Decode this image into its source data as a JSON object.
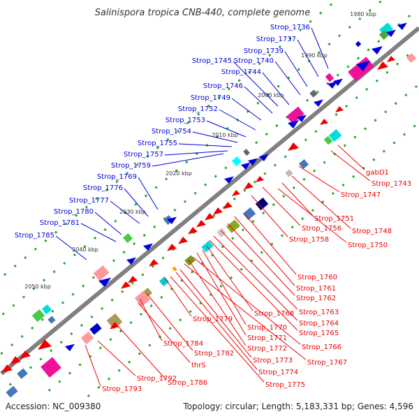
{
  "title": "Salinispora tropica CNB-440, complete genome",
  "footer": {
    "accession": "Accession: NC_009380",
    "summary": "Topology: circular; Length: 5,183,331 bp; Genes: 4,596"
  },
  "colors": {
    "forward": "#0000dd",
    "reverse": "#ee0000",
    "backbone": "#808080",
    "ticks": "#2a8a2a"
  },
  "ruler_labels": [
    "1980 kbp",
    "1990 kbp",
    "2000 kbp",
    "2010 kbp",
    "2020 kbp",
    "2030 kbp",
    "2040 kbp",
    "2050 kbp"
  ],
  "forward_labels": [
    "Strop_1736",
    "Strop_1737",
    "Strop_1739",
    "Strop_1740",
    "Strop_1744",
    "Strop_1745",
    "Strop_1746",
    "Strop_1749",
    "Strop_1752",
    "Strop_1753",
    "Strop_1754",
    "Strop_1755",
    "Strop_1757",
    "Strop_1759",
    "Strop_1769",
    "Strop_1776",
    "Strop_1777",
    "Strop_1780",
    "Strop_1781",
    "Strop_1785"
  ],
  "reverse_labels": [
    "gabD1",
    "Strop_1743",
    "Strop_1747",
    "Strop_1751",
    "Strop_1748",
    "Strop_1756",
    "Strop_1758",
    "Strop_1750",
    "Strop_1760",
    "Strop_1761",
    "Strop_1762",
    "Strop_1763",
    "Strop_1768",
    "Strop_1764",
    "Strop_1770",
    "Strop_1765",
    "Strop_1779",
    "Strop_1771",
    "Strop_1766",
    "Strop_1772",
    "Strop_1784",
    "Strop_1767",
    "Strop_1782",
    "Strop_1773",
    "thrS",
    "Strop_1774",
    "Strop_1786",
    "Strop_1775",
    "Strop_1792",
    "Strop_1793"
  ]
}
